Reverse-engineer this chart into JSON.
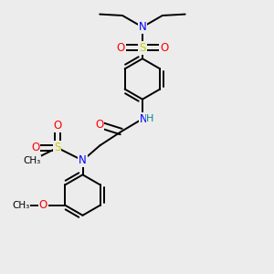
{
  "bg_color": "#ececec",
  "atom_colors": {
    "N": "#0000ff",
    "O": "#ff0000",
    "S": "#cccc00",
    "C": "#000000",
    "H": "#008b8b"
  },
  "bond_color": "#000000",
  "bond_width": 1.4,
  "font_size": 8.5
}
